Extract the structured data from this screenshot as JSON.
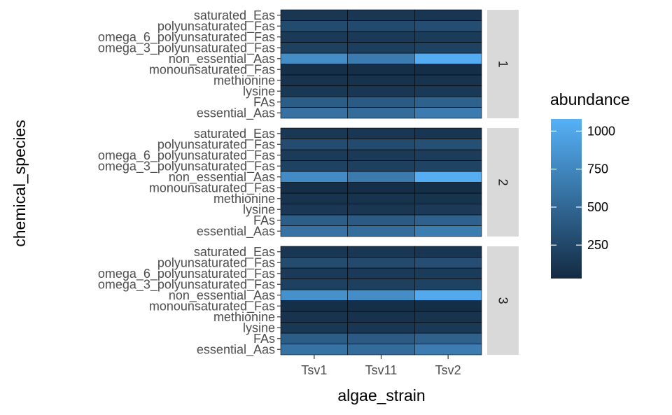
{
  "chart_data": {
    "type": "heatmap",
    "xlabel": "algae_strain",
    "ylabel": "chemical_species",
    "x_categories": [
      "Tsv1",
      "Tsv11",
      "Tsv2"
    ],
    "y_categories": [
      "essential_Aas",
      "FAs",
      "lysine",
      "methionine",
      "monounsaturated_Fas",
      "non_essential_Aas",
      "omega_3_polyunsaturated_Fas",
      "omega_6_polyunsaturated_Fas",
      "polyunsaturated_Fas",
      "saturated_Eas"
    ],
    "facets": [
      {
        "label": "1",
        "values": {
          "saturated_Eas": [
            120,
            120,
            110
          ],
          "polyunsaturated_Fas": [
            280,
            270,
            300
          ],
          "omega_6_polyunsaturated_Fas": [
            150,
            145,
            160
          ],
          "omega_3_polyunsaturated_Fas": [
            200,
            190,
            210
          ],
          "non_essential_Aas": [
            800,
            660,
            1050
          ],
          "monounsaturated_Fas": [
            60,
            60,
            55
          ],
          "methionine": [
            90,
            85,
            95
          ],
          "lysine": [
            130,
            120,
            140
          ],
          "FAs": [
            420,
            400,
            450
          ],
          "essential_Aas": [
            580,
            530,
            660
          ]
        }
      },
      {
        "label": "2",
        "values": {
          "saturated_Eas": [
            130,
            125,
            115
          ],
          "polyunsaturated_Fas": [
            290,
            280,
            310
          ],
          "omega_6_polyunsaturated_Fas": [
            155,
            150,
            165
          ],
          "omega_3_polyunsaturated_Fas": [
            210,
            195,
            215
          ],
          "non_essential_Aas": [
            780,
            650,
            1060
          ],
          "monounsaturated_Fas": [
            65,
            60,
            60
          ],
          "methionine": [
            95,
            90,
            100
          ],
          "lysine": [
            135,
            125,
            145
          ],
          "FAs": [
            430,
            410,
            460
          ],
          "essential_Aas": [
            590,
            540,
            670
          ]
        }
      },
      {
        "label": "3",
        "values": {
          "saturated_Eas": [
            125,
            120,
            115
          ],
          "polyunsaturated_Fas": [
            285,
            275,
            305
          ],
          "omega_6_polyunsaturated_Fas": [
            150,
            145,
            160
          ],
          "omega_3_polyunsaturated_Fas": [
            205,
            195,
            210
          ],
          "non_essential_Aas": [
            830,
            800,
            1020
          ],
          "monounsaturated_Fas": [
            60,
            58,
            55
          ],
          "methionine": [
            90,
            88,
            95
          ],
          "lysine": [
            130,
            125,
            140
          ],
          "FAs": [
            425,
            410,
            455
          ],
          "essential_Aas": [
            585,
            535,
            665
          ]
        }
      }
    ],
    "legend": {
      "title": "abundance",
      "position": "right",
      "breaks": [
        250,
        500,
        750,
        1000
      ],
      "range": [
        30,
        1080
      ],
      "low_color": "#132B43",
      "high_color": "#56B1F7"
    },
    "grid": true
  }
}
